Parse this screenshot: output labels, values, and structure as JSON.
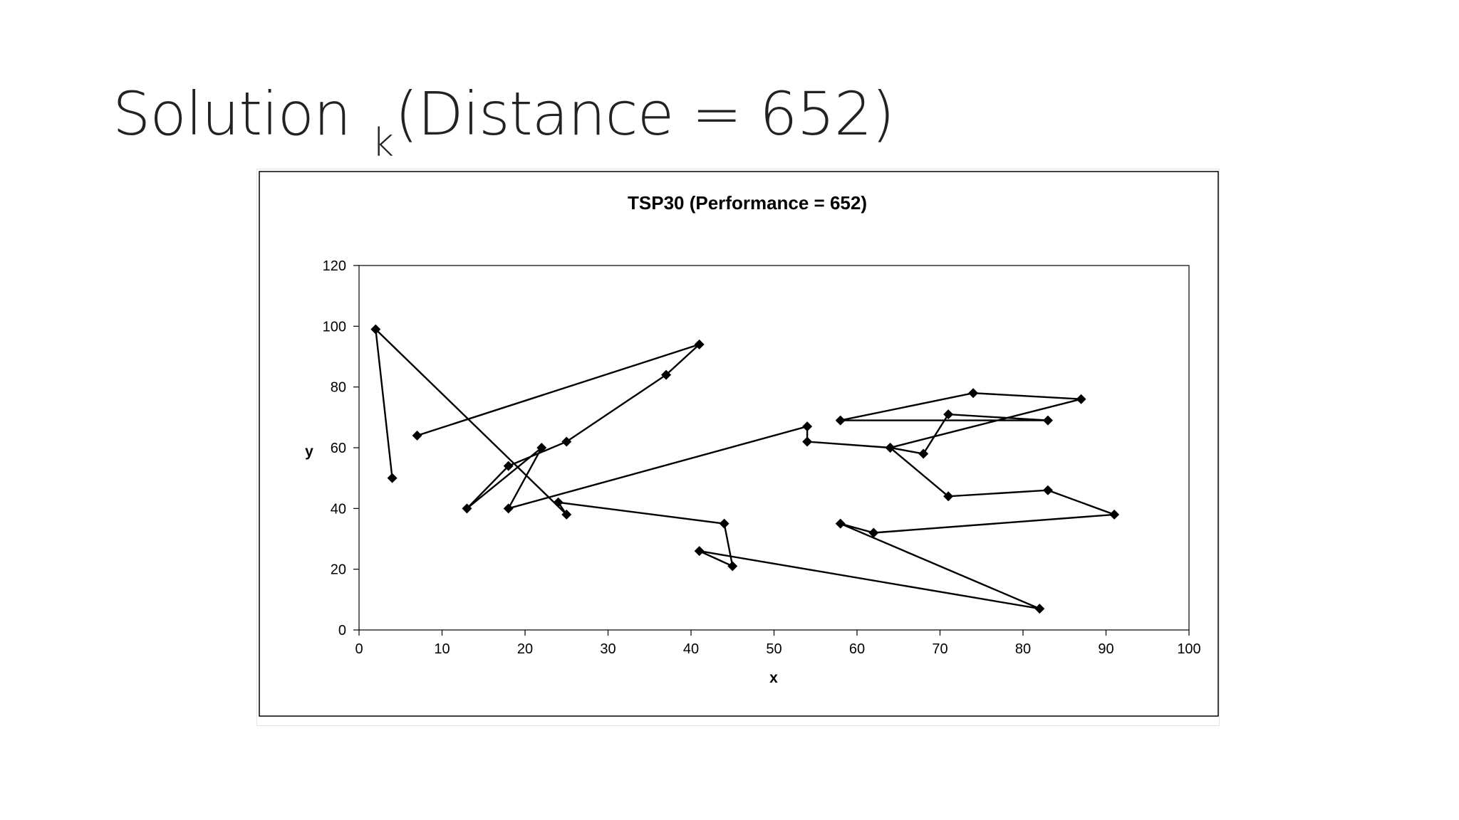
{
  "slide": {
    "title_main": "Solution",
    "title_sub": "k",
    "title_rest": "(Distance = 652)"
  },
  "chart_data": {
    "type": "line",
    "title": "TSP30 (Performance = 652)",
    "xlabel": "x",
    "ylabel": "y",
    "xlim": [
      0,
      100
    ],
    "ylim": [
      0,
      120
    ],
    "xticks": [
      0,
      10,
      20,
      30,
      40,
      50,
      60,
      70,
      80,
      90,
      100
    ],
    "yticks": [
      0,
      20,
      40,
      60,
      80,
      100,
      120
    ],
    "marker": "diamond",
    "line_color": "#000000",
    "grid": false,
    "legend": "none",
    "series": [
      {
        "points": [
          [
            4,
            50
          ],
          [
            2,
            99
          ],
          [
            25,
            38
          ],
          [
            24,
            42
          ],
          [
            44,
            35
          ],
          [
            45,
            21
          ],
          [
            41,
            26
          ],
          [
            82,
            7
          ],
          [
            58,
            35
          ],
          [
            62,
            32
          ],
          [
            91,
            38
          ],
          [
            83,
            46
          ],
          [
            71,
            44
          ],
          [
            64,
            60
          ],
          [
            87,
            76
          ],
          [
            74,
            78
          ],
          [
            58,
            69
          ],
          [
            83,
            69
          ],
          [
            71,
            71
          ],
          [
            68,
            58
          ],
          [
            64,
            60
          ],
          [
            54,
            62
          ],
          [
            54,
            67
          ],
          [
            18,
            40
          ],
          [
            22,
            60
          ],
          [
            13,
            40
          ],
          [
            18,
            54
          ],
          [
            25,
            62
          ],
          [
            37,
            84
          ],
          [
            41,
            94
          ],
          [
            7,
            64
          ]
        ]
      }
    ]
  }
}
